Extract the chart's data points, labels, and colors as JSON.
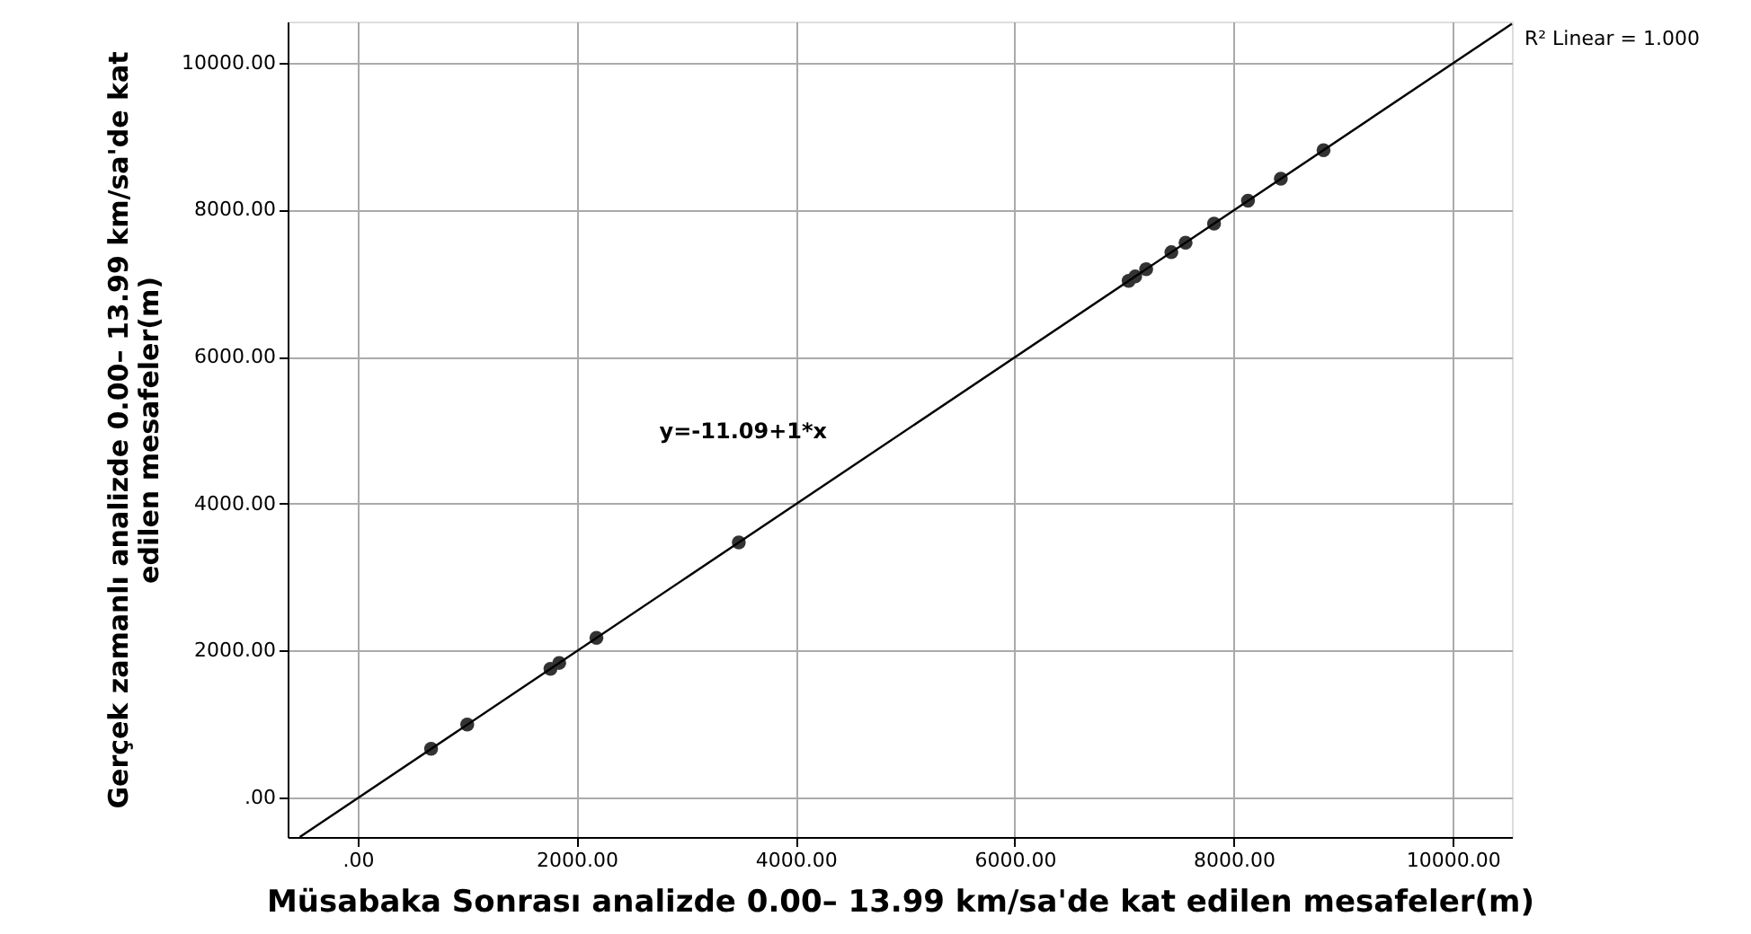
{
  "chart_data": {
    "type": "scatter",
    "xlabel": "Müsabaka Sonrası analizde 0.00– 13.99 km/sa'de kat edilen mesafeler(m)",
    "ylabel": "Gerçek zamanlı analizde 0.00– 13.99 km/sa'de kat edilen mesafeler(m)",
    "xlim": [
      -640,
      10540
    ],
    "ylim": [
      -540,
      10560
    ],
    "xticks": [
      {
        "value": 0,
        "label": ".00"
      },
      {
        "value": 2000,
        "label": "2000.00"
      },
      {
        "value": 4000,
        "label": "4000.00"
      },
      {
        "value": 6000,
        "label": "6000.00"
      },
      {
        "value": 8000,
        "label": "8000.00"
      },
      {
        "value": 10000,
        "label": "10000.00"
      }
    ],
    "yticks": [
      {
        "value": 0,
        "label": ".00"
      },
      {
        "value": 2000,
        "label": "2000.00"
      },
      {
        "value": 4000,
        "label": "4000.00"
      },
      {
        "value": 6000,
        "label": "6000.00"
      },
      {
        "value": 8000,
        "label": "8000.00"
      },
      {
        "value": 10000,
        "label": "10000.00"
      }
    ],
    "grid": true,
    "marker": "circle",
    "series": [
      {
        "color": "#333333",
        "x": [
          670,
          1000,
          1760,
          1840,
          2180,
          3480,
          7040,
          7100,
          7200,
          7430,
          7560,
          7820,
          8130,
          8430,
          8820
        ],
        "values": [
          660,
          990,
          1750,
          1830,
          2170,
          3470,
          7030,
          7090,
          7190,
          7420,
          7550,
          7810,
          8120,
          8420,
          8810
        ]
      },
      {
        "type": "line",
        "color": "#000000",
        "marker": "none",
        "line_style": "solid",
        "x": [
          -529,
          10540
        ],
        "values": [
          -540,
          10530
        ]
      }
    ],
    "annotations": [
      "y=-11.09+1*x",
      "R² Linear = 1.000"
    ]
  }
}
